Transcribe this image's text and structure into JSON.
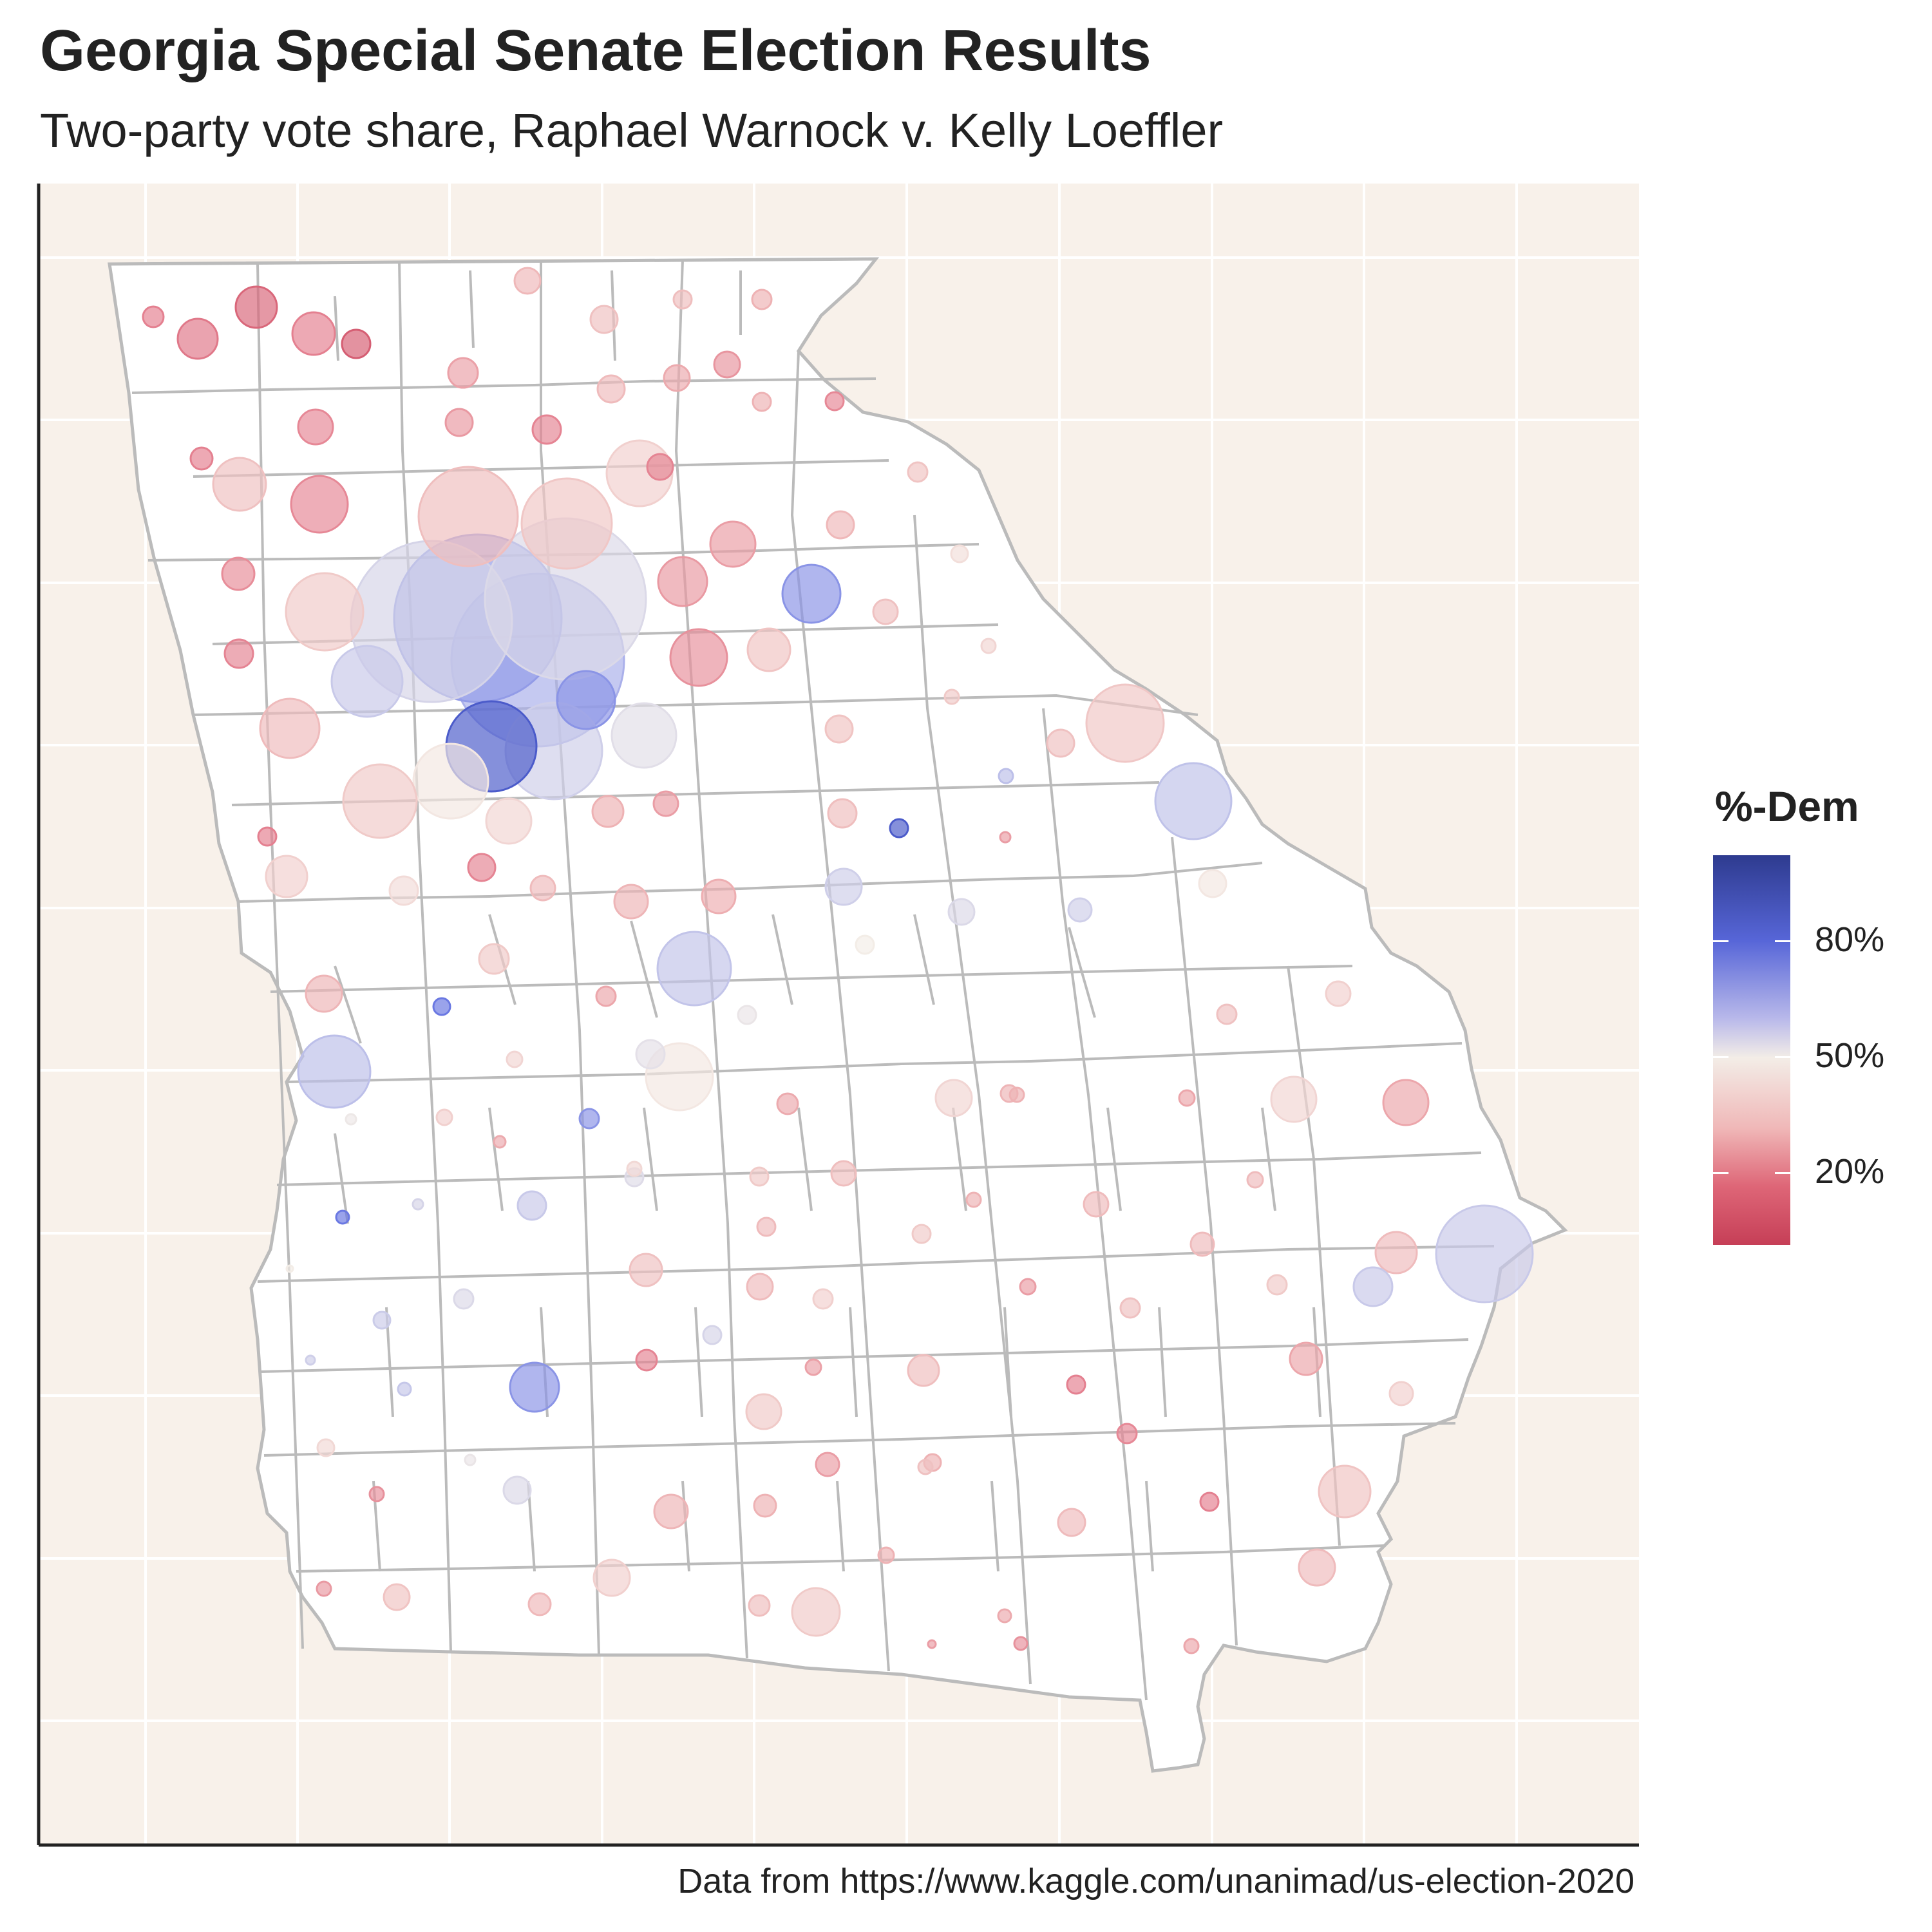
{
  "title": "Georgia Special Senate Election Results",
  "subtitle": "Two-party vote share, Raphael Warnock v. Kelly Loeffler",
  "caption": "Data from https://www.kaggle.com/unanimad/us-election-2020",
  "legend": {
    "title": "%-Dem",
    "labels": [
      "80%",
      "50%",
      "20%"
    ]
  },
  "colors": {
    "panel_background": "#f8f1ea",
    "state_fill": "#ffffff",
    "county_border": "#bbbbbb",
    "dem_high": "#2c3e9e",
    "dem": "#5a6ae0",
    "neutral": "#f3ede7",
    "rep": "#e48090",
    "rep_high": "#c63c55"
  },
  "chart_data": {
    "type": "scatter",
    "value_encoding": "fill color = Democratic two-party share (%), circle area = county votes",
    "dem_share_legend_ticks": [
      80,
      50,
      20
    ]
  }
}
